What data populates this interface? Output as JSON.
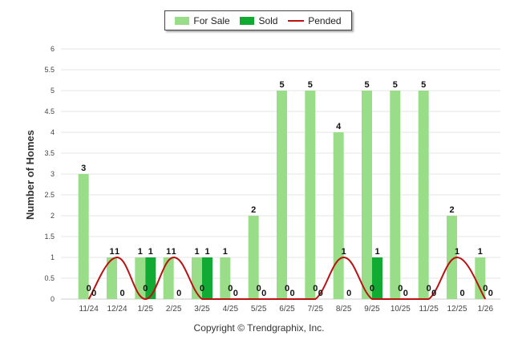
{
  "chart_data": {
    "type": "bar",
    "categories": [
      "11/24",
      "12/24",
      "1/25",
      "2/25",
      "3/25",
      "4/25",
      "5/25",
      "6/25",
      "7/25",
      "8/25",
      "9/25",
      "10/25",
      "11/25",
      "12/25",
      "1/26"
    ],
    "series": [
      {
        "name": "For Sale",
        "kind": "bar",
        "color": "#99dd88",
        "values": [
          3,
          1,
          1,
          1,
          1,
          1,
          2,
          5,
          5,
          4,
          5,
          5,
          5,
          2,
          1
        ]
      },
      {
        "name": "Sold",
        "kind": "bar",
        "color": "#11aa33",
        "values": [
          0,
          0,
          1,
          0,
          1,
          0,
          0,
          0,
          0,
          0,
          1,
          0,
          0,
          0,
          0
        ]
      },
      {
        "name": "Pended",
        "kind": "line",
        "color": "#bb1111",
        "values": [
          0,
          1,
          0,
          1,
          0,
          0,
          0,
          0,
          0,
          1,
          0,
          0,
          0,
          1,
          0
        ]
      }
    ],
    "ylabel": "Number of Homes",
    "ylim": [
      0,
      6
    ],
    "yticks": [
      "0",
      "0.5",
      "1",
      "1.5",
      "2",
      "2.5",
      "3",
      "3.5",
      "4",
      "4.5",
      "5",
      "5.5",
      "6"
    ],
    "grid": true,
    "legend_position": "top-center"
  },
  "footer": {
    "copyright": "Copyright © Trendgraphix, Inc."
  }
}
